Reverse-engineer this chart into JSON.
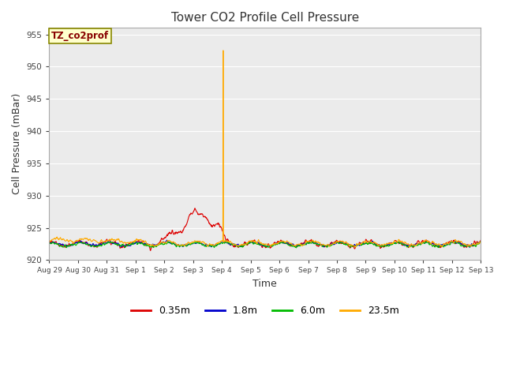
{
  "title": "Tower CO2 Profile Cell Pressure",
  "xlabel": "Time",
  "ylabel": "Cell Pressure (mBar)",
  "ylim": [
    920,
    956
  ],
  "yticks": [
    920,
    925,
    930,
    935,
    940,
    945,
    950,
    955
  ],
  "fig_bg_color": "#ffffff",
  "plot_bg_color": "#ebebeb",
  "grid_color": "#ffffff",
  "series": [
    {
      "label": "0.35m",
      "color": "#dd0000",
      "lw": 0.8
    },
    {
      "label": "1.8m",
      "color": "#0000cc",
      "lw": 0.8
    },
    {
      "label": "6.0m",
      "color": "#00bb00",
      "lw": 0.8
    },
    {
      "label": "23.5m",
      "color": "#ffaa00",
      "lw": 0.8
    }
  ],
  "annotation_label": "TZ_co2prof",
  "annotation_color": "#880000",
  "annotation_bg": "#ffffcc",
  "annotation_edge": "#888800",
  "x_tick_labels": [
    "Aug 29",
    "Aug 30",
    "Aug 31",
    "Sep 1",
    "Sep 2",
    "Sep 3",
    "Sep 4",
    "Sep 5",
    "Sep 6",
    "Sep 7",
    "Sep 8",
    "Sep 9",
    "Sep 10",
    "Sep 11",
    "Sep 12",
    "Sep 13"
  ],
  "n_days": 15,
  "base_pressure": 922.5,
  "spike_day": 6.05,
  "spike_value": 952.5,
  "seed": 42
}
